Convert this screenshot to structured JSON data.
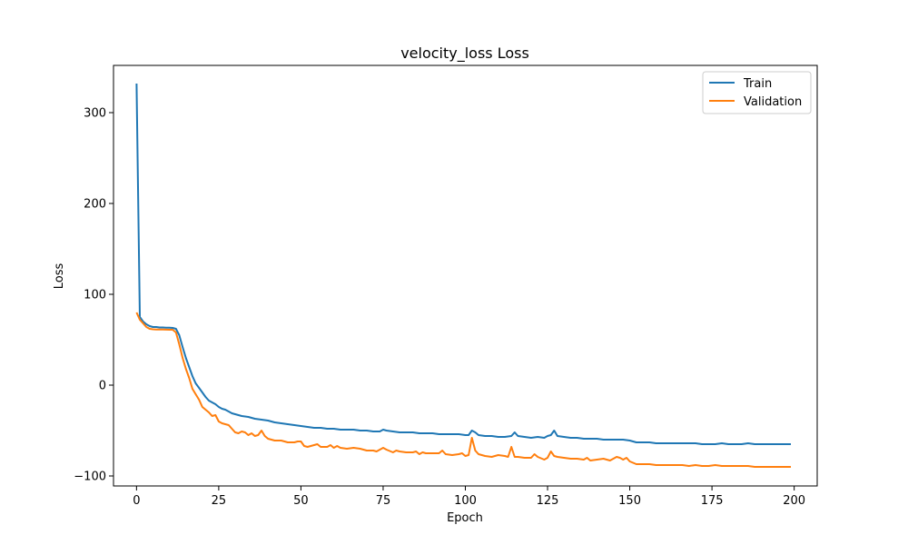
{
  "chart_data": {
    "type": "line",
    "title": "velocity_loss Loss",
    "xlabel": "Epoch",
    "ylabel": "Loss",
    "xlim": [
      -7,
      207
    ],
    "ylim": [
      -111,
      352
    ],
    "xticks": [
      0,
      25,
      50,
      75,
      100,
      125,
      150,
      175,
      200
    ],
    "yticks": [
      -100,
      0,
      100,
      200,
      300
    ],
    "ytick_labels": [
      "−100",
      "0",
      "100",
      "200",
      "300"
    ],
    "grid": false,
    "legend_position": "top-right",
    "series": [
      {
        "name": "Train",
        "color": "#1f77b4",
        "points": [
          [
            0,
            332
          ],
          [
            1,
            75
          ],
          [
            2,
            70
          ],
          [
            3,
            67
          ],
          [
            4,
            65
          ],
          [
            5,
            64
          ],
          [
            6,
            64
          ],
          [
            7,
            63.5
          ],
          [
            8,
            63.5
          ],
          [
            9,
            63.3
          ],
          [
            10,
            63.2
          ],
          [
            11,
            63
          ],
          [
            12,
            62
          ],
          [
            13,
            55
          ],
          [
            14,
            42
          ],
          [
            15,
            30
          ],
          [
            16,
            20
          ],
          [
            17,
            10
          ],
          [
            18,
            2
          ],
          [
            19,
            -3
          ],
          [
            20,
            -8
          ],
          [
            21,
            -13
          ],
          [
            22,
            -17
          ],
          [
            23,
            -19
          ],
          [
            24,
            -21
          ],
          [
            25,
            -24
          ],
          [
            26,
            -26
          ],
          [
            27,
            -27
          ],
          [
            28,
            -29
          ],
          [
            29,
            -31
          ],
          [
            30,
            -32
          ],
          [
            32,
            -34
          ],
          [
            34,
            -35
          ],
          [
            36,
            -37
          ],
          [
            38,
            -38
          ],
          [
            40,
            -39
          ],
          [
            42,
            -41
          ],
          [
            44,
            -42
          ],
          [
            46,
            -43
          ],
          [
            48,
            -44
          ],
          [
            50,
            -45
          ],
          [
            52,
            -46
          ],
          [
            54,
            -47
          ],
          [
            56,
            -47
          ],
          [
            58,
            -48
          ],
          [
            60,
            -48
          ],
          [
            62,
            -49
          ],
          [
            64,
            -49
          ],
          [
            66,
            -49
          ],
          [
            68,
            -50
          ],
          [
            70,
            -50
          ],
          [
            72,
            -51
          ],
          [
            74,
            -51
          ],
          [
            75,
            -49
          ],
          [
            76,
            -50
          ],
          [
            78,
            -51
          ],
          [
            80,
            -52
          ],
          [
            82,
            -52
          ],
          [
            84,
            -52
          ],
          [
            86,
            -53
          ],
          [
            88,
            -53
          ],
          [
            90,
            -53
          ],
          [
            92,
            -54
          ],
          [
            94,
            -54
          ],
          [
            96,
            -54
          ],
          [
            98,
            -54
          ],
          [
            100,
            -55
          ],
          [
            101,
            -55
          ],
          [
            102,
            -50
          ],
          [
            103,
            -52
          ],
          [
            104,
            -55
          ],
          [
            106,
            -56
          ],
          [
            108,
            -56
          ],
          [
            110,
            -57
          ],
          [
            112,
            -57
          ],
          [
            114,
            -56
          ],
          [
            115,
            -52
          ],
          [
            116,
            -56
          ],
          [
            118,
            -57
          ],
          [
            120,
            -58
          ],
          [
            122,
            -57
          ],
          [
            124,
            -58
          ],
          [
            125,
            -56
          ],
          [
            126,
            -55
          ],
          [
            127,
            -50
          ],
          [
            128,
            -56
          ],
          [
            130,
            -57
          ],
          [
            132,
            -58
          ],
          [
            134,
            -58
          ],
          [
            136,
            -59
          ],
          [
            138,
            -59
          ],
          [
            140,
            -59
          ],
          [
            142,
            -60
          ],
          [
            144,
            -60
          ],
          [
            146,
            -60
          ],
          [
            148,
            -60
          ],
          [
            150,
            -61
          ],
          [
            152,
            -63
          ],
          [
            154,
            -63
          ],
          [
            156,
            -63
          ],
          [
            158,
            -64
          ],
          [
            160,
            -64
          ],
          [
            162,
            -64
          ],
          [
            164,
            -64
          ],
          [
            166,
            -64
          ],
          [
            168,
            -64
          ],
          [
            170,
            -64
          ],
          [
            172,
            -65
          ],
          [
            174,
            -65
          ],
          [
            176,
            -65
          ],
          [
            178,
            -64
          ],
          [
            180,
            -65
          ],
          [
            182,
            -65
          ],
          [
            184,
            -65
          ],
          [
            186,
            -64
          ],
          [
            188,
            -65
          ],
          [
            190,
            -65
          ],
          [
            192,
            -65
          ],
          [
            194,
            -65
          ],
          [
            196,
            -65
          ],
          [
            198,
            -65
          ],
          [
            199,
            -65
          ]
        ]
      },
      {
        "name": "Validation",
        "color": "#ff7f0e",
        "points": [
          [
            0,
            80
          ],
          [
            1,
            72
          ],
          [
            2,
            68
          ],
          [
            3,
            64
          ],
          [
            4,
            62
          ],
          [
            5,
            61.5
          ],
          [
            6,
            61.3
          ],
          [
            7,
            61.2
          ],
          [
            8,
            61.2
          ],
          [
            9,
            61.1
          ],
          [
            10,
            61
          ],
          [
            11,
            61
          ],
          [
            12,
            58
          ],
          [
            13,
            45
          ],
          [
            14,
            30
          ],
          [
            15,
            18
          ],
          [
            16,
            8
          ],
          [
            17,
            -4
          ],
          [
            18,
            -10
          ],
          [
            19,
            -16
          ],
          [
            20,
            -24
          ],
          [
            21,
            -27
          ],
          [
            22,
            -30
          ],
          [
            23,
            -34
          ],
          [
            24,
            -33
          ],
          [
            25,
            -40
          ],
          [
            26,
            -42
          ],
          [
            27,
            -43
          ],
          [
            28,
            -44
          ],
          [
            29,
            -48
          ],
          [
            30,
            -52
          ],
          [
            31,
            -53
          ],
          [
            32,
            -51
          ],
          [
            33,
            -52
          ],
          [
            34,
            -55
          ],
          [
            35,
            -53
          ],
          [
            36,
            -56
          ],
          [
            37,
            -55
          ],
          [
            38,
            -50
          ],
          [
            39,
            -56
          ],
          [
            40,
            -59
          ],
          [
            42,
            -61
          ],
          [
            44,
            -61
          ],
          [
            46,
            -63
          ],
          [
            48,
            -63
          ],
          [
            49,
            -62
          ],
          [
            50,
            -62
          ],
          [
            51,
            -67
          ],
          [
            52,
            -68
          ],
          [
            54,
            -66
          ],
          [
            55,
            -65
          ],
          [
            56,
            -68
          ],
          [
            58,
            -68
          ],
          [
            59,
            -66
          ],
          [
            60,
            -69
          ],
          [
            61,
            -67
          ],
          [
            62,
            -69
          ],
          [
            64,
            -70
          ],
          [
            66,
            -69
          ],
          [
            68,
            -70
          ],
          [
            70,
            -72
          ],
          [
            72,
            -72
          ],
          [
            73,
            -73
          ],
          [
            75,
            -69
          ],
          [
            76,
            -71
          ],
          [
            78,
            -74
          ],
          [
            79,
            -72
          ],
          [
            80,
            -73
          ],
          [
            82,
            -74
          ],
          [
            84,
            -74
          ],
          [
            85,
            -73
          ],
          [
            86,
            -76
          ],
          [
            87,
            -74
          ],
          [
            88,
            -75
          ],
          [
            90,
            -75
          ],
          [
            92,
            -75
          ],
          [
            93,
            -72
          ],
          [
            94,
            -76
          ],
          [
            96,
            -77
          ],
          [
            98,
            -76
          ],
          [
            99,
            -75
          ],
          [
            100,
            -78
          ],
          [
            101,
            -77
          ],
          [
            102,
            -58
          ],
          [
            103,
            -72
          ],
          [
            104,
            -76
          ],
          [
            106,
            -78
          ],
          [
            108,
            -79
          ],
          [
            110,
            -77
          ],
          [
            112,
            -78
          ],
          [
            113,
            -79
          ],
          [
            114,
            -68
          ],
          [
            115,
            -79
          ],
          [
            116,
            -79
          ],
          [
            118,
            -80
          ],
          [
            120,
            -80
          ],
          [
            121,
            -76
          ],
          [
            122,
            -79
          ],
          [
            124,
            -82
          ],
          [
            125,
            -80
          ],
          [
            126,
            -73
          ],
          [
            127,
            -78
          ],
          [
            128,
            -79
          ],
          [
            130,
            -80
          ],
          [
            132,
            -81
          ],
          [
            134,
            -81
          ],
          [
            136,
            -82
          ],
          [
            137,
            -80
          ],
          [
            138,
            -83
          ],
          [
            140,
            -82
          ],
          [
            142,
            -81
          ],
          [
            144,
            -83
          ],
          [
            146,
            -79
          ],
          [
            147,
            -80
          ],
          [
            148,
            -82
          ],
          [
            149,
            -80
          ],
          [
            150,
            -84
          ],
          [
            152,
            -87
          ],
          [
            154,
            -87
          ],
          [
            156,
            -87
          ],
          [
            158,
            -88
          ],
          [
            160,
            -88
          ],
          [
            162,
            -88
          ],
          [
            164,
            -88
          ],
          [
            166,
            -88
          ],
          [
            168,
            -89
          ],
          [
            170,
            -88
          ],
          [
            172,
            -89
          ],
          [
            174,
            -89
          ],
          [
            176,
            -88
          ],
          [
            178,
            -89
          ],
          [
            180,
            -89
          ],
          [
            182,
            -89
          ],
          [
            184,
            -89
          ],
          [
            186,
            -89
          ],
          [
            188,
            -90
          ],
          [
            190,
            -90
          ],
          [
            192,
            -90
          ],
          [
            194,
            -90
          ],
          [
            196,
            -90
          ],
          [
            198,
            -90
          ],
          [
            199,
            -90
          ]
        ]
      }
    ]
  }
}
